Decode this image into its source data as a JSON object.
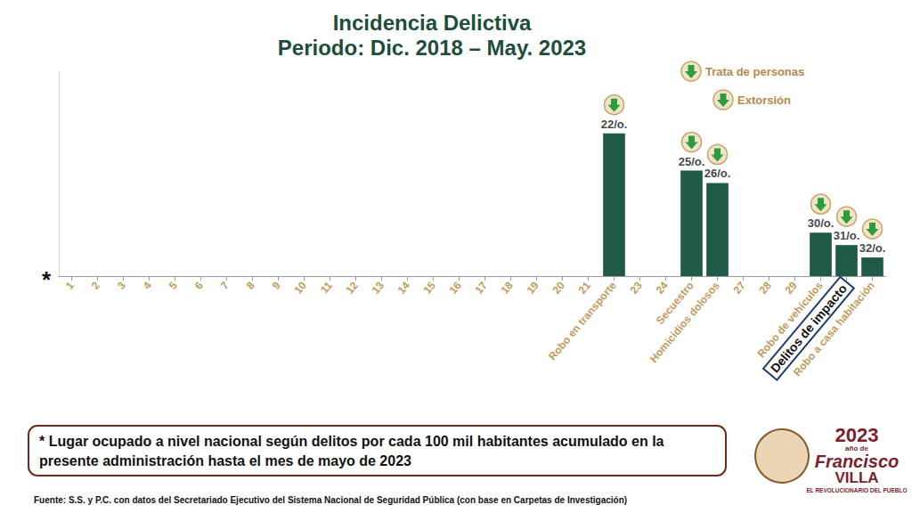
{
  "chart_data": {
    "type": "bar",
    "title": "Incidencia Delictiva",
    "subtitle": "Periodo: Dic. 2018 – May. 2023",
    "categories": [
      "1",
      "2",
      "3",
      "4",
      "5",
      "6",
      "7",
      "8",
      "9",
      "10",
      "11",
      "12",
      "13",
      "14",
      "15",
      "16",
      "17",
      "18",
      "19",
      "20",
      "21",
      "Robo en transporte",
      "23",
      "24",
      "Secuestro",
      "Homicidios dolosos",
      "27",
      "28",
      "29",
      "Robo de vehículos",
      "Delitos de impacto",
      "Robo a casa habitación"
    ],
    "values": [
      null,
      null,
      null,
      null,
      null,
      null,
      null,
      null,
      null,
      null,
      null,
      null,
      null,
      null,
      null,
      null,
      null,
      null,
      null,
      null,
      null,
      22,
      null,
      null,
      25,
      26,
      null,
      null,
      null,
      30,
      31,
      32
    ],
    "value_labels": [
      null,
      null,
      null,
      null,
      null,
      null,
      null,
      null,
      null,
      null,
      null,
      null,
      null,
      null,
      null,
      null,
      null,
      null,
      null,
      null,
      null,
      "22/o.",
      null,
      null,
      "25/o.",
      "26/o.",
      null,
      null,
      null,
      "30/o.",
      "31/o.",
      "32/o."
    ],
    "color": "#1f5a47",
    "ylim": [
      33.5,
      17
    ],
    "grid": false,
    "data_labels": true,
    "tick_labels": "x",
    "annotations": [
      "Trata de personas",
      "Extorsión"
    ],
    "axis_marker": "*",
    "footnote": "* Lugar ocupado a nivel nacional según delitos por cada 100 mil habitantes acumulado en la presente administración hasta el mes de mayo de 2023",
    "source": "Fuente: S.S. y P.C. con datos del Secretariado Ejecutivo del Sistema Nacional de Seguridad Pública (con base en Carpetas de Investigación)",
    "logo": [
      "2023",
      "año de",
      "Francisco",
      "VILLA",
      "EL REVOLUCIONARIO DEL PUEBLO"
    ]
  }
}
